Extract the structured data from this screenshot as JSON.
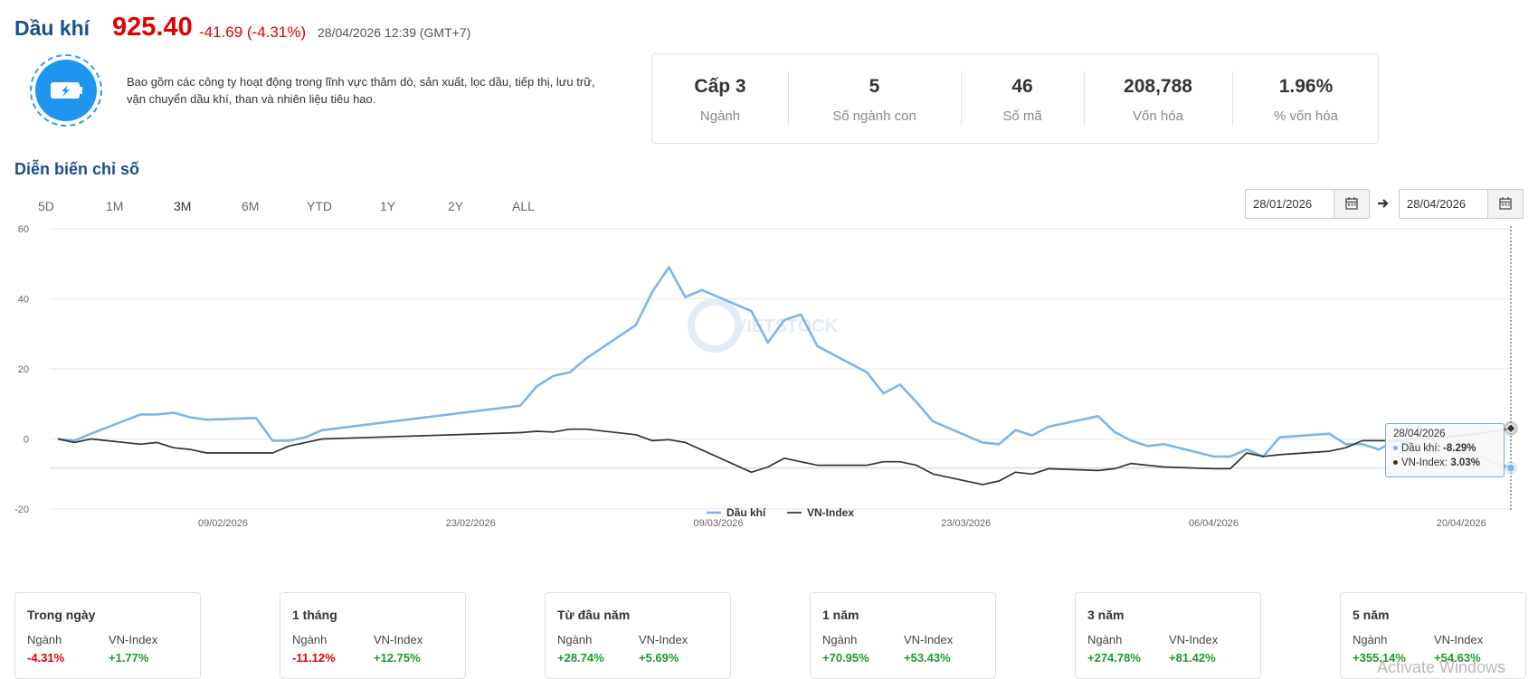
{
  "header": {
    "title": "Dầu khí",
    "price": "925.40",
    "change": "-41.69 (-4.31%)",
    "datetime": "28/04/2026 12:39 (GMT+7)"
  },
  "description": "Bao gồm các công ty hoạt động trong lĩnh vực thăm dò, sản xuất, lọc dầu, tiếp thị, lưu trữ, vận chuyển dầu khí, than và nhiên liệu tiêu hao.",
  "stats": [
    {
      "value": "Cấp 3",
      "label": "Ngành"
    },
    {
      "value": "5",
      "label": "Số ngành con"
    },
    {
      "value": "46",
      "label": "Số mã"
    },
    {
      "value": "208,788",
      "label": "Vốn hóa"
    },
    {
      "value": "1.96%",
      "label": "% vốn hóa"
    }
  ],
  "section_title": "Diễn biến chỉ số",
  "range_tabs": [
    "5D",
    "1M",
    "3M",
    "6M",
    "YTD",
    "1Y",
    "2Y",
    "ALL"
  ],
  "active_range": "3M",
  "date_from": "28/01/2026",
  "date_to": "28/04/2026",
  "watermark": "VIETSTOCK",
  "chart_data": {
    "type": "line",
    "ylim": [
      -20,
      60
    ],
    "yticks": [
      "60",
      "40",
      "20",
      "0",
      "-20"
    ],
    "xtick_labels": [
      "09/02/2026",
      "23/02/2026",
      "09/03/2026",
      "23/03/2026",
      "06/04/2026",
      "20/04/2026"
    ],
    "series": [
      {
        "name": "Dầu khí",
        "color": "#7cb5ec",
        "points": [
          [
            0,
            0
          ],
          [
            1,
            -0.5
          ],
          [
            2,
            1.5
          ],
          [
            5,
            7
          ],
          [
            6,
            7
          ],
          [
            7,
            7.5
          ],
          [
            8,
            6.2
          ],
          [
            9,
            5.5
          ],
          [
            12,
            6
          ],
          [
            13,
            -0.5
          ],
          [
            14,
            -0.5
          ],
          [
            15,
            0.5
          ],
          [
            16,
            2.5
          ],
          [
            28,
            9.5
          ],
          [
            29,
            15
          ],
          [
            30,
            18
          ],
          [
            31,
            19
          ],
          [
            32,
            23
          ],
          [
            35,
            32.5
          ],
          [
            36,
            42
          ],
          [
            37,
            49
          ],
          [
            38,
            40.5
          ],
          [
            39,
            42.5
          ],
          [
            42,
            36.5
          ],
          [
            43,
            27.5
          ],
          [
            44,
            34
          ],
          [
            45,
            35.5
          ],
          [
            46,
            26.5
          ],
          [
            49,
            19
          ],
          [
            50,
            13
          ],
          [
            51,
            15.5
          ],
          [
            52,
            10.5
          ],
          [
            53,
            5
          ],
          [
            56,
            -1
          ],
          [
            57,
            -1.5
          ],
          [
            58,
            2.5
          ],
          [
            59,
            1
          ],
          [
            60,
            3.5
          ],
          [
            63,
            6.5
          ],
          [
            64,
            2
          ],
          [
            65,
            -0.5
          ],
          [
            66,
            -2
          ],
          [
            67,
            -1.5
          ],
          [
            70,
            -5
          ],
          [
            71,
            -5
          ],
          [
            72,
            -3
          ],
          [
            73,
            -5
          ],
          [
            74,
            0.5
          ],
          [
            77,
            1.5
          ],
          [
            78,
            -1.5
          ],
          [
            79,
            -1.5
          ],
          [
            80,
            -3
          ],
          [
            81,
            -0.5
          ],
          [
            84,
            -2.5
          ],
          [
            85,
            -3.5
          ],
          [
            86,
            -5
          ],
          [
            88,
            -8.29
          ]
        ]
      },
      {
        "name": "VN-Index",
        "color": "#333333",
        "points": [
          [
            0,
            0
          ],
          [
            1,
            -1
          ],
          [
            2,
            0
          ],
          [
            5,
            -1.5
          ],
          [
            6,
            -1
          ],
          [
            7,
            -2.5
          ],
          [
            8,
            -3
          ],
          [
            9,
            -4
          ],
          [
            12,
            -4
          ],
          [
            13,
            -4
          ],
          [
            14,
            -2
          ],
          [
            15,
            -1
          ],
          [
            16,
            0
          ],
          [
            28,
            1.8
          ],
          [
            29,
            2.2
          ],
          [
            30,
            2
          ],
          [
            31,
            2.8
          ],
          [
            32,
            2.8
          ],
          [
            35,
            1.2
          ],
          [
            36,
            -0.5
          ],
          [
            37,
            -0.2
          ],
          [
            38,
            -1
          ],
          [
            42,
            -9.5
          ],
          [
            43,
            -8
          ],
          [
            44,
            -5.5
          ],
          [
            45,
            -6.5
          ],
          [
            46,
            -7.5
          ],
          [
            49,
            -7.5
          ],
          [
            50,
            -6.5
          ],
          [
            51,
            -6.5
          ],
          [
            52,
            -7.5
          ],
          [
            53,
            -10
          ],
          [
            56,
            -13
          ],
          [
            57,
            -12
          ],
          [
            58,
            -9.5
          ],
          [
            59,
            -10
          ],
          [
            60,
            -8.5
          ],
          [
            63,
            -9
          ],
          [
            64,
            -8.5
          ],
          [
            65,
            -7
          ],
          [
            66,
            -7.5
          ],
          [
            67,
            -8
          ],
          [
            70,
            -8.5
          ],
          [
            71,
            -8.5
          ],
          [
            72,
            -4
          ],
          [
            73,
            -5
          ],
          [
            74,
            -4.5
          ],
          [
            77,
            -3.5
          ],
          [
            78,
            -2.5
          ],
          [
            79,
            -0.5
          ],
          [
            80,
            -0.5
          ],
          [
            81,
            -0.5
          ],
          [
            84,
            0.5
          ],
          [
            85,
            1
          ],
          [
            86,
            1.5
          ],
          [
            88,
            3.03
          ]
        ]
      }
    ]
  },
  "tooltip": {
    "date": "28/04/2026",
    "series1_label": "Dầu khí:",
    "series1_value": "-8.29%",
    "series2_label": "VN-Index:",
    "series2_value": "3.03%"
  },
  "performance": [
    {
      "title": "Trong ngày",
      "label1": "Ngành",
      "label2": "VN-Index",
      "value1": "-4.31%",
      "value2": "+1.77%"
    },
    {
      "title": "1 tháng",
      "label1": "Ngành",
      "label2": "VN-Index",
      "value1": "-11.12%",
      "value2": "+12.75%"
    },
    {
      "title": "Từ đầu năm",
      "label1": "Ngành",
      "label2": "VN-Index",
      "value1": "+28.74%",
      "value2": "+5.69%"
    },
    {
      "title": "1 năm",
      "label1": "Ngành",
      "label2": "VN-Index",
      "value1": "+70.95%",
      "value2": "+53.43%"
    },
    {
      "title": "3 năm",
      "label1": "Ngành",
      "label2": "VN-Index",
      "value1": "+274.78%",
      "value2": "+81.42%"
    },
    {
      "title": "5 năm",
      "label1": "Ngành",
      "label2": "VN-Index",
      "value1": "+355.14%",
      "value2": "+54.63%"
    }
  ],
  "os_watermark": "Activate Windows"
}
